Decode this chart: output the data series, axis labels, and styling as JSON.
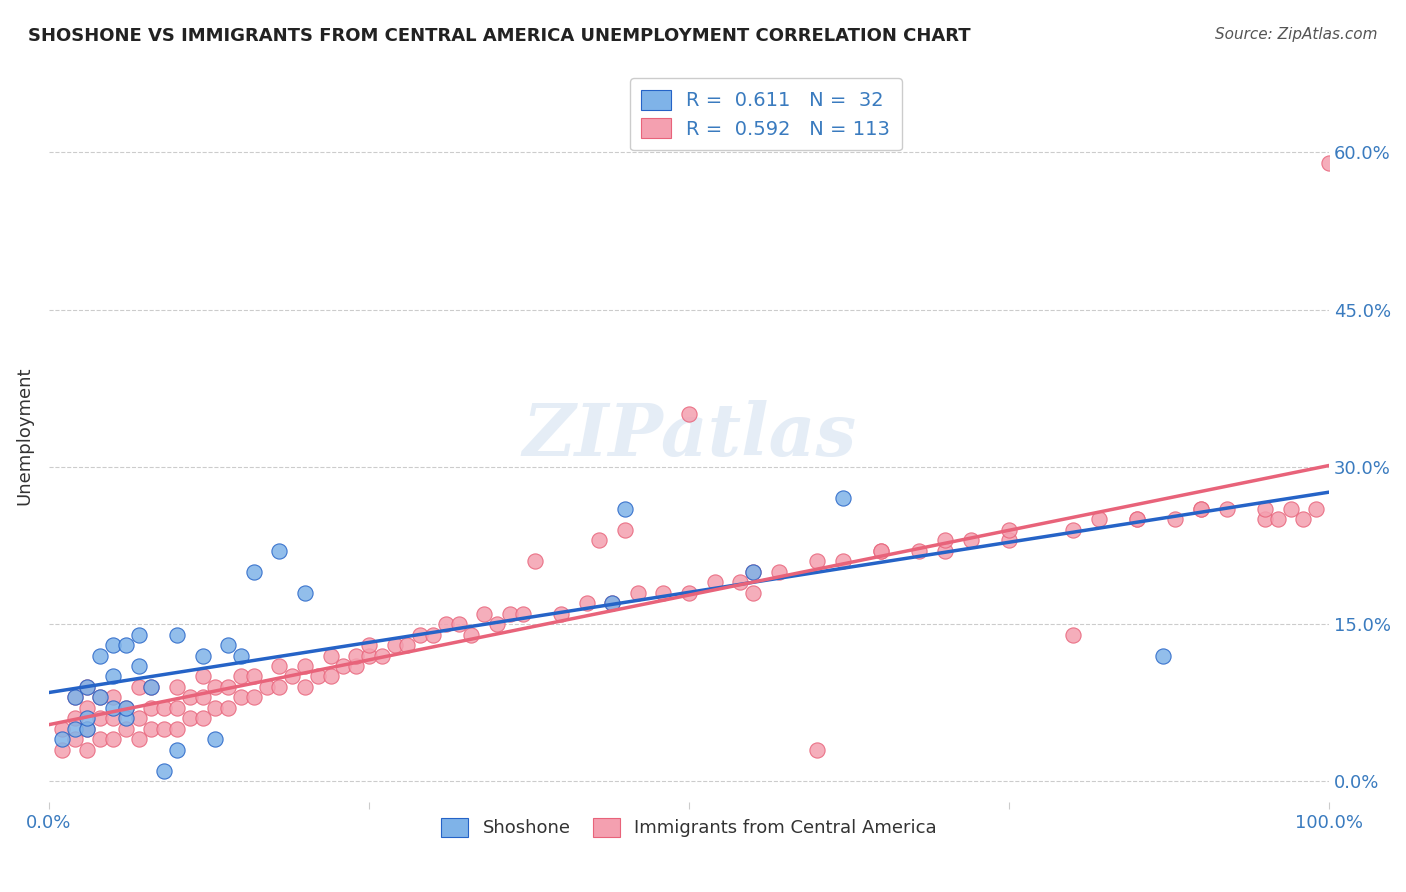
{
  "title": "SHOSHONE VS IMMIGRANTS FROM CENTRAL AMERICA UNEMPLOYMENT CORRELATION CHART",
  "source": "Source: ZipAtlas.com",
  "xlabel": "",
  "ylabel": "Unemployment",
  "xlim": [
    0.0,
    1.0
  ],
  "ylim": [
    -0.02,
    0.68
  ],
  "yticks": [
    0.0,
    0.15,
    0.3,
    0.45,
    0.6
  ],
  "ytick_labels": [
    "0.0%",
    "15.0%",
    "30.0%",
    "45.0%",
    "60.0%"
  ],
  "xticks": [
    0.0,
    0.25,
    0.5,
    0.75,
    1.0
  ],
  "xtick_labels": [
    "0.0%",
    "",
    "",
    "",
    "100.0%"
  ],
  "legend_blue_label": "R =  0.611   N =  32",
  "legend_pink_label": "R =  0.592   N = 113",
  "watermark": "ZIPatlas",
  "blue_color": "#7fb3e8",
  "pink_color": "#f4a0b0",
  "blue_line_color": "#2563c7",
  "pink_line_color": "#e8637a",
  "blue_R": 0.611,
  "blue_N": 32,
  "pink_R": 0.592,
  "pink_N": 113,
  "shoshone_x": [
    0.01,
    0.02,
    0.02,
    0.03,
    0.03,
    0.03,
    0.04,
    0.04,
    0.05,
    0.05,
    0.05,
    0.06,
    0.06,
    0.06,
    0.07,
    0.07,
    0.08,
    0.09,
    0.1,
    0.1,
    0.12,
    0.13,
    0.14,
    0.15,
    0.16,
    0.18,
    0.2,
    0.44,
    0.45,
    0.55,
    0.62,
    0.87
  ],
  "shoshone_y": [
    0.04,
    0.05,
    0.08,
    0.05,
    0.06,
    0.09,
    0.08,
    0.12,
    0.07,
    0.1,
    0.13,
    0.06,
    0.07,
    0.13,
    0.11,
    0.14,
    0.09,
    0.01,
    0.03,
    0.14,
    0.12,
    0.04,
    0.13,
    0.12,
    0.2,
    0.22,
    0.18,
    0.17,
    0.26,
    0.2,
    0.27,
    0.12
  ],
  "pink_x": [
    0.01,
    0.01,
    0.02,
    0.02,
    0.02,
    0.03,
    0.03,
    0.03,
    0.03,
    0.04,
    0.04,
    0.04,
    0.05,
    0.05,
    0.05,
    0.06,
    0.06,
    0.07,
    0.07,
    0.07,
    0.08,
    0.08,
    0.08,
    0.09,
    0.09,
    0.1,
    0.1,
    0.1,
    0.11,
    0.11,
    0.12,
    0.12,
    0.12,
    0.13,
    0.13,
    0.14,
    0.14,
    0.15,
    0.15,
    0.16,
    0.16,
    0.17,
    0.18,
    0.18,
    0.19,
    0.2,
    0.2,
    0.21,
    0.22,
    0.22,
    0.23,
    0.24,
    0.24,
    0.25,
    0.25,
    0.26,
    0.27,
    0.28,
    0.29,
    0.3,
    0.31,
    0.32,
    0.33,
    0.34,
    0.35,
    0.36,
    0.37,
    0.4,
    0.42,
    0.44,
    0.46,
    0.48,
    0.5,
    0.52,
    0.54,
    0.55,
    0.57,
    0.6,
    0.62,
    0.65,
    0.68,
    0.7,
    0.72,
    0.75,
    0.8,
    0.82,
    0.85,
    0.88,
    0.9,
    0.92,
    0.95,
    0.97,
    0.98,
    0.99,
    1.0,
    0.5,
    0.38,
    0.43,
    0.45,
    0.55,
    0.6,
    0.65,
    0.7,
    0.75,
    0.8,
    0.85,
    0.9,
    0.95,
    0.96
  ],
  "pink_y": [
    0.03,
    0.05,
    0.04,
    0.06,
    0.08,
    0.03,
    0.05,
    0.07,
    0.09,
    0.04,
    0.06,
    0.08,
    0.04,
    0.06,
    0.08,
    0.05,
    0.07,
    0.04,
    0.06,
    0.09,
    0.05,
    0.07,
    0.09,
    0.05,
    0.07,
    0.05,
    0.07,
    0.09,
    0.06,
    0.08,
    0.06,
    0.08,
    0.1,
    0.07,
    0.09,
    0.07,
    0.09,
    0.08,
    0.1,
    0.08,
    0.1,
    0.09,
    0.09,
    0.11,
    0.1,
    0.09,
    0.11,
    0.1,
    0.1,
    0.12,
    0.11,
    0.11,
    0.12,
    0.12,
    0.13,
    0.12,
    0.13,
    0.13,
    0.14,
    0.14,
    0.15,
    0.15,
    0.14,
    0.16,
    0.15,
    0.16,
    0.16,
    0.16,
    0.17,
    0.17,
    0.18,
    0.18,
    0.18,
    0.19,
    0.19,
    0.2,
    0.2,
    0.21,
    0.21,
    0.22,
    0.22,
    0.22,
    0.23,
    0.23,
    0.24,
    0.25,
    0.25,
    0.25,
    0.26,
    0.26,
    0.25,
    0.26,
    0.25,
    0.26,
    0.59,
    0.35,
    0.21,
    0.23,
    0.24,
    0.18,
    0.03,
    0.22,
    0.23,
    0.24,
    0.14,
    0.25,
    0.26,
    0.26,
    0.25
  ]
}
